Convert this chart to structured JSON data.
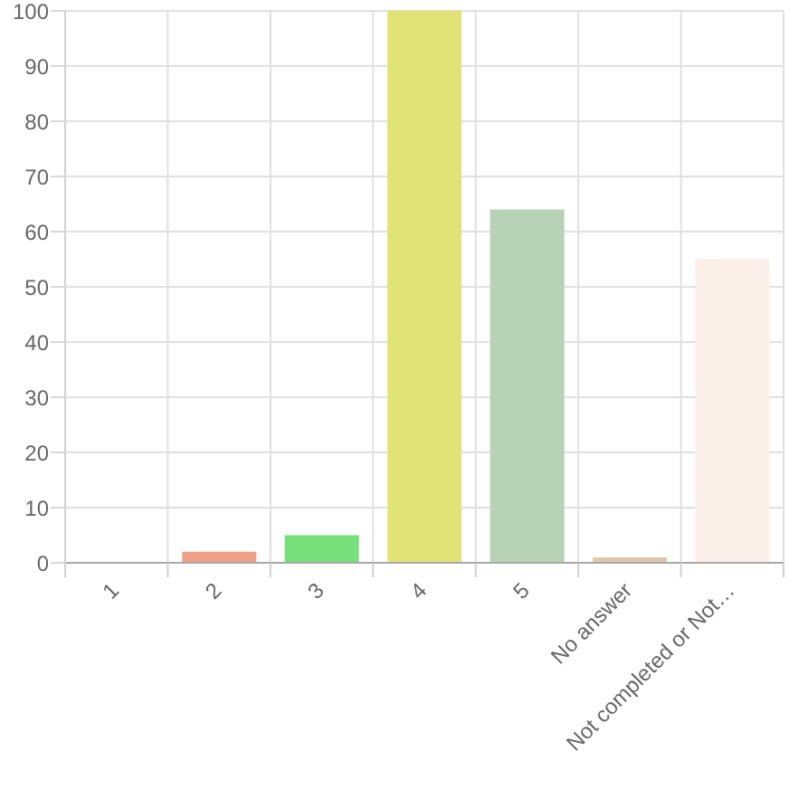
{
  "chart_data": {
    "type": "bar",
    "categories": [
      "1",
      "2",
      "3",
      "4",
      "5",
      "No answer",
      "Not completed or Not…"
    ],
    "values": [
      0,
      2,
      5,
      100,
      64,
      1,
      55
    ],
    "colors": [
      "#e89a9a",
      "#f0a088",
      "#77e07a",
      "#e1e377",
      "#b7d2b4",
      "#dfc8a8",
      "#fbefea"
    ],
    "ylim": [
      0,
      100
    ],
    "yticks": [
      0,
      10,
      20,
      30,
      40,
      50,
      60,
      70,
      80,
      90,
      100
    ],
    "grid": true
  }
}
